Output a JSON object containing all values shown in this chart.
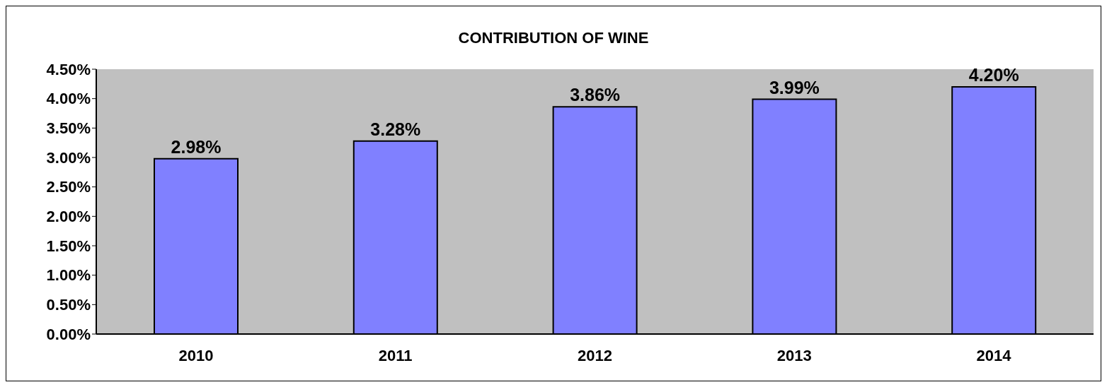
{
  "chart_data": {
    "type": "bar",
    "title": "CONTRIBUTION OF WINE",
    "categories": [
      "2010",
      "2011",
      "2012",
      "2013",
      "2014"
    ],
    "values": [
      2.98,
      3.28,
      3.86,
      3.99,
      4.2
    ],
    "value_labels": [
      "2.98%",
      "3.28%",
      "3.86%",
      "3.99%",
      "4.20%"
    ],
    "color": "#8080ff",
    "ylim": [
      0,
      4.5
    ],
    "yticks": [
      {
        "value": 0,
        "label": "0.00%"
      },
      {
        "value": 0.5,
        "label": "0.50%"
      },
      {
        "value": 1,
        "label": "1.00%"
      },
      {
        "value": 1.5,
        "label": "1.50%"
      },
      {
        "value": 2,
        "label": "2.00%"
      },
      {
        "value": 2.5,
        "label": "2.50%"
      },
      {
        "value": 3,
        "label": "3.00%"
      },
      {
        "value": 3.5,
        "label": "3.50%"
      },
      {
        "value": 4,
        "label": "4.00%"
      },
      {
        "value": 4.5,
        "label": "4.50%"
      }
    ],
    "grid": false,
    "legend": false
  }
}
